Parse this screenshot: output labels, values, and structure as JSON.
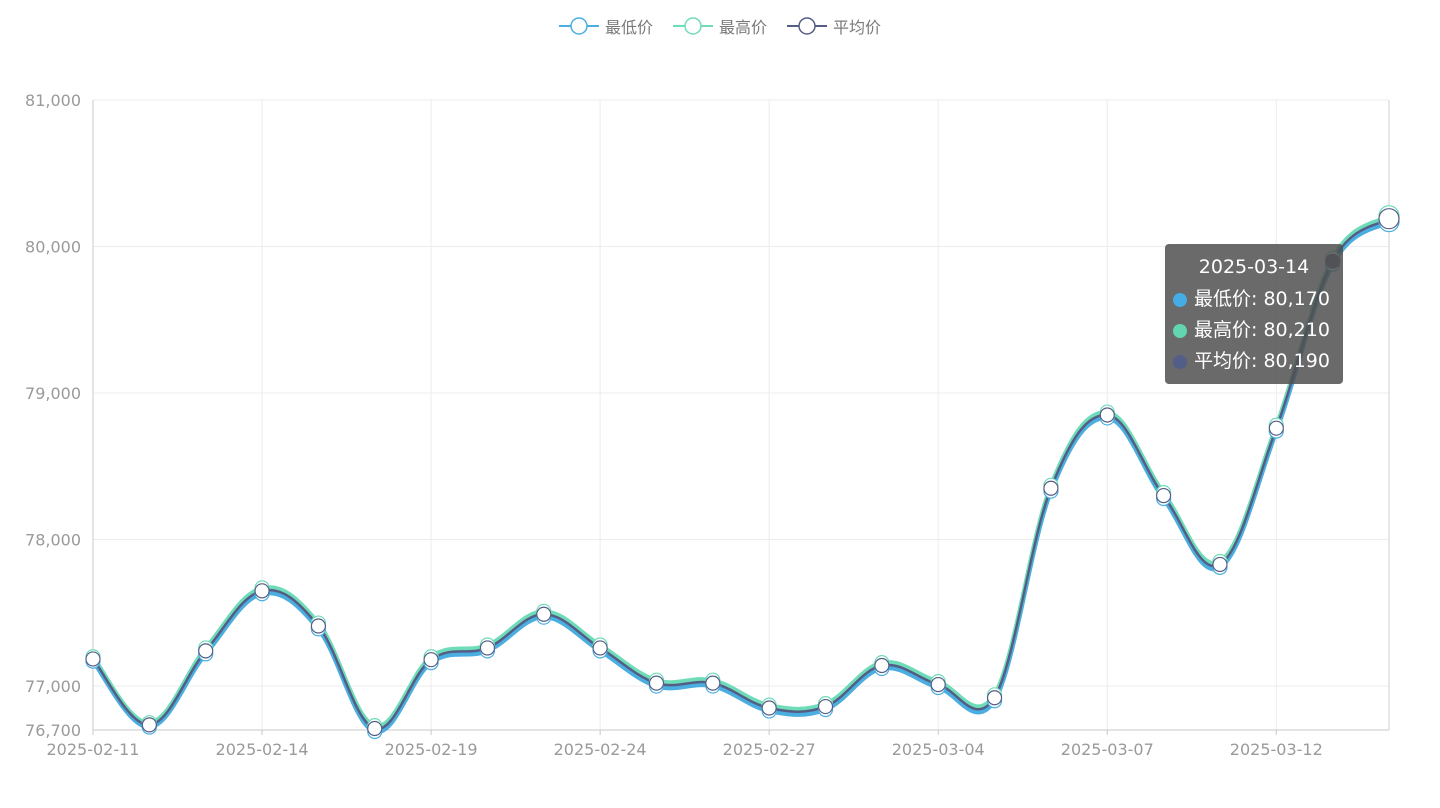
{
  "legend": [
    {
      "name": "最低价",
      "color": "#4aaee0"
    },
    {
      "name": "最高价",
      "color": "#6fdcb9"
    },
    {
      "name": "平均价",
      "color": "#545e85"
    }
  ],
  "tooltip": {
    "date": "2025-03-14",
    "rows": [
      {
        "name": "最低价",
        "value": "80,170",
        "color": "#45ade3"
      },
      {
        "name": "最高价",
        "value": "80,210",
        "color": "#62d6b0"
      },
      {
        "name": "平均价",
        "value": "80,190",
        "color": "#535e88"
      }
    ]
  },
  "chart_data": {
    "type": "line",
    "dates": [
      "2025-02-11",
      "2025-02-12",
      "2025-02-13",
      "2025-02-14",
      "2025-02-17",
      "2025-02-18",
      "2025-02-19",
      "2025-02-20",
      "2025-02-21",
      "2025-02-24",
      "2025-02-25",
      "2025-02-26",
      "2025-02-27",
      "2025-02-28",
      "2025-03-03",
      "2025-03-04",
      "2025-03-05",
      "2025-03-06",
      "2025-03-07",
      "2025-03-10",
      "2025-03-11",
      "2025-03-12",
      "2025-03-13",
      "2025-03-14"
    ],
    "x_tick_labels": [
      "2025-02-11",
      "2025-02-14",
      "2025-02-19",
      "2025-02-24",
      "2025-02-27",
      "2025-03-04",
      "2025-03-07",
      "2025-03-12"
    ],
    "y_tick_labels": [
      "81,000",
      "80,000",
      "79,000",
      "78,000",
      "77,000",
      "76,700"
    ],
    "ylim": [
      76700,
      81000
    ],
    "grid": true,
    "legend_position": "top-center",
    "series": [
      {
        "name": "最低价",
        "values": [
          77170,
          76720,
          77220,
          77630,
          77390,
          76690,
          77160,
          77240,
          77470,
          77240,
          77000,
          77000,
          76830,
          76840,
          77120,
          76990,
          76900,
          78330,
          78830,
          78280,
          77810,
          78740,
          79880,
          80170
        ]
      },
      {
        "name": "最高价",
        "values": [
          77200,
          76750,
          77260,
          77670,
          77430,
          76730,
          77200,
          77280,
          77510,
          77280,
          77040,
          77040,
          76870,
          76880,
          77160,
          77030,
          76940,
          78370,
          78870,
          78320,
          77850,
          78780,
          79920,
          80210
        ]
      },
      {
        "name": "平均价",
        "values": [
          77185,
          76735,
          77240,
          77650,
          77410,
          76710,
          77180,
          77260,
          77490,
          77260,
          77020,
          77020,
          76850,
          76860,
          77140,
          77010,
          76920,
          78350,
          78850,
          78300,
          77830,
          78760,
          79900,
          80190
        ]
      }
    ]
  }
}
